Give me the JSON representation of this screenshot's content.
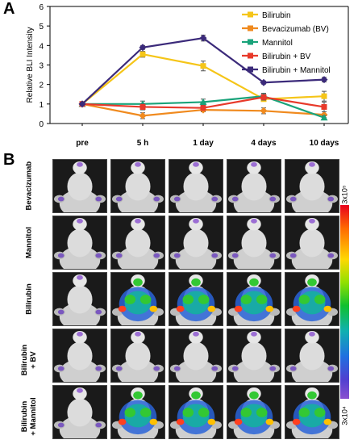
{
  "panel_a_letter": "A",
  "panel_b_letter": "B",
  "chart_data": {
    "type": "line",
    "categories": [
      "pre",
      "5 h",
      "1 day",
      "4 days",
      "10 days"
    ],
    "ylabel": "Relative BLI Intensity",
    "xlabel": "",
    "ylim": [
      0,
      6
    ],
    "yticks": [
      0,
      1,
      2,
      3,
      4,
      5,
      6
    ],
    "grid": false,
    "legend_position": "top-right",
    "series": [
      {
        "name": "Bilirubin",
        "color": "#f5c518",
        "values": [
          1.0,
          3.55,
          2.95,
          1.25,
          1.4
        ],
        "errors": [
          0.05,
          0.15,
          0.25,
          0.1,
          0.25
        ]
      },
      {
        "name": "Bevacizumab (BV)",
        "color": "#f08a1e",
        "values": [
          1.0,
          0.4,
          0.7,
          0.65,
          0.45
        ],
        "errors": [
          0.05,
          0.15,
          0.1,
          0.15,
          0.15
        ]
      },
      {
        "name": "Mannitol",
        "color": "#1aa37a",
        "values": [
          1.0,
          1.0,
          1.1,
          1.4,
          0.3
        ],
        "errors": [
          0.05,
          0.15,
          0.15,
          0.15,
          0.1
        ]
      },
      {
        "name": "Bilirubin + BV",
        "color": "#e8392a",
        "values": [
          1.0,
          0.85,
          0.8,
          1.35,
          0.85
        ],
        "errors": [
          0.05,
          0.15,
          0.1,
          0.15,
          0.25
        ]
      },
      {
        "name": "Bilirubin + Mannitol",
        "color": "#3b2a7a",
        "values": [
          1.0,
          3.9,
          4.38,
          2.1,
          2.25
        ],
        "errors": [
          0.05,
          0.1,
          0.15,
          0.08,
          0.12
        ]
      }
    ]
  },
  "panel_b": {
    "rows": [
      {
        "label": "Bevacizumab",
        "signal": [
          0,
          0,
          0,
          0,
          0
        ]
      },
      {
        "label": "Mannitol",
        "signal": [
          0,
          0,
          0,
          0,
          0
        ]
      },
      {
        "label": "Bilirubin",
        "signal": [
          0,
          1,
          1,
          1,
          1
        ]
      },
      {
        "label": "Bilirubin\n+ BV",
        "signal": [
          0,
          0,
          0,
          0,
          0
        ]
      },
      {
        "label": "Bilirubin\n+ Mannitol",
        "signal": [
          0,
          1,
          1,
          1,
          1
        ]
      }
    ],
    "colorbar": {
      "max_label": "3x10⁵",
      "min_label": "3x10⁴"
    }
  }
}
